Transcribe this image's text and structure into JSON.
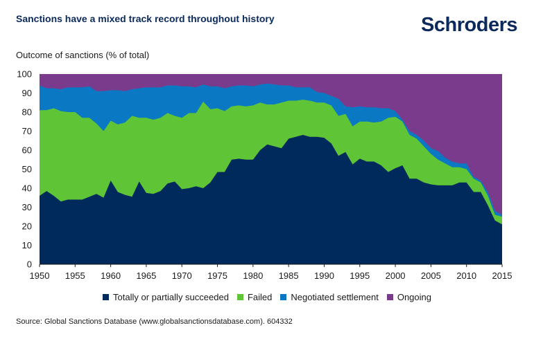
{
  "header": {
    "title": "Sanctions have a mixed track record throughout history",
    "logo": "Schroders"
  },
  "footer": {
    "source": "Source: Global Sanctions Database (www.globalsanctionsdatabase.com). 604332"
  },
  "chart_data": {
    "type": "area",
    "stacked": true,
    "ylabel": "Outcome of sanctions (% of total)",
    "xlabel": "",
    "xlim": [
      1950,
      2015
    ],
    "ylim": [
      0,
      100
    ],
    "xticks": [
      1950,
      1955,
      1960,
      1965,
      1970,
      1975,
      1980,
      1985,
      1990,
      1995,
      2000,
      2005,
      2010,
      2015
    ],
    "yticks": [
      0,
      10,
      20,
      30,
      40,
      50,
      60,
      70,
      80,
      90,
      100
    ],
    "legend_position": "bottom",
    "x": [
      1950,
      1951,
      1952,
      1953,
      1954,
      1955,
      1956,
      1957,
      1958,
      1959,
      1960,
      1961,
      1962,
      1963,
      1964,
      1965,
      1966,
      1967,
      1968,
      1969,
      1970,
      1971,
      1972,
      1973,
      1974,
      1975,
      1976,
      1977,
      1978,
      1979,
      1980,
      1981,
      1982,
      1983,
      1984,
      1985,
      1986,
      1987,
      1988,
      1989,
      1990,
      1991,
      1992,
      1993,
      1994,
      1995,
      1996,
      1997,
      1998,
      1999,
      2000,
      2001,
      2002,
      2003,
      2004,
      2005,
      2006,
      2007,
      2008,
      2009,
      2010,
      2011,
      2012,
      2013,
      2014,
      2015
    ],
    "series": [
      {
        "name": "Totally or partially succeeded",
        "color": "#002a5c",
        "values": [
          36,
          38.5,
          36,
          33,
          34,
          34,
          34,
          35.5,
          37,
          35,
          44,
          38,
          36.5,
          35.5,
          43.5,
          37.5,
          37,
          38.5,
          42.5,
          43.5,
          39.5,
          40,
          41,
          40,
          43,
          48.5,
          48.5,
          55,
          55.5,
          55,
          55,
          60,
          63,
          62,
          61,
          66,
          67,
          68,
          67,
          67,
          66.5,
          63.5,
          57,
          59,
          52.5,
          55.5,
          54,
          54,
          52,
          48.5,
          50.5,
          52,
          45,
          45,
          43,
          42,
          41.5,
          41.5,
          41.5,
          43,
          43,
          38,
          38,
          31,
          23,
          21
        ]
      },
      {
        "name": "Failed",
        "color": "#5fc536",
        "values": [
          81,
          81,
          82,
          80.5,
          80,
          80,
          77,
          77,
          74,
          70,
          75.5,
          73.5,
          74.5,
          78,
          77,
          77,
          76,
          77,
          79.5,
          78,
          77,
          79.5,
          79.5,
          85.5,
          81.5,
          82,
          80.5,
          83,
          83.5,
          83,
          83.5,
          85,
          84,
          84,
          85,
          86,
          86,
          86.5,
          86,
          85,
          85,
          83.5,
          78,
          79,
          72.5,
          75,
          75,
          74.5,
          75,
          77,
          77.5,
          75,
          68,
          66,
          62,
          58,
          55,
          53,
          51,
          51,
          50,
          45,
          43,
          36,
          26,
          25
        ]
      },
      {
        "name": "Negotiated settlement",
        "color": "#0b78c4",
        "values": [
          94,
          92.5,
          92.5,
          92,
          93,
          93,
          93,
          93.5,
          91,
          91,
          91.5,
          91.5,
          91,
          92,
          92.5,
          93,
          93,
          93,
          94,
          94,
          93.5,
          93.5,
          93,
          94.5,
          93.5,
          93.5,
          92.5,
          93.5,
          94,
          94,
          93.5,
          94.5,
          95,
          94.5,
          94,
          94,
          93,
          93,
          93,
          90.5,
          90,
          88.5,
          87,
          83,
          82.5,
          83,
          82.5,
          82.5,
          82,
          82,
          80.5,
          76,
          70,
          68,
          65,
          61,
          59.5,
          56,
          54,
          53,
          53,
          46,
          44,
          38,
          28,
          26
        ]
      },
      {
        "name": "Ongoing",
        "color": "#7b3b8c",
        "values": [
          100,
          100,
          100,
          100,
          100,
          100,
          100,
          100,
          100,
          100,
          100,
          100,
          100,
          100,
          100,
          100,
          100,
          100,
          100,
          100,
          100,
          100,
          100,
          100,
          100,
          100,
          100,
          100,
          100,
          100,
          100,
          100,
          100,
          100,
          100,
          100,
          100,
          100,
          100,
          100,
          100,
          100,
          100,
          100,
          100,
          100,
          100,
          100,
          100,
          100,
          100,
          100,
          100,
          100,
          100,
          100,
          100,
          100,
          100,
          100,
          100,
          100,
          100,
          100,
          100,
          100
        ]
      }
    ]
  }
}
